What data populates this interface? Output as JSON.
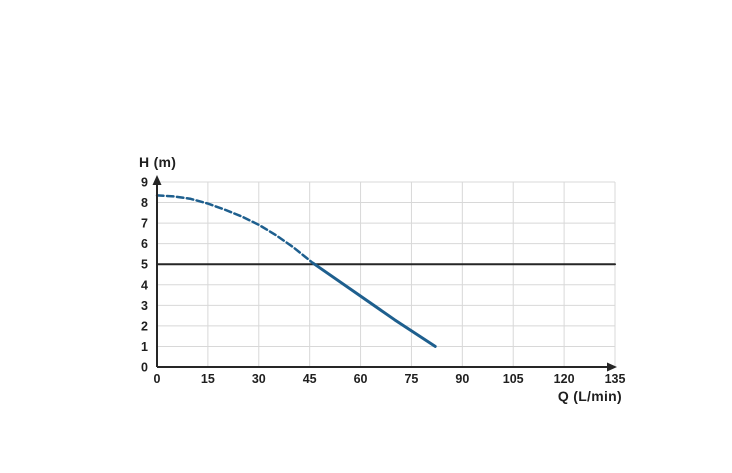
{
  "page": {
    "background": "#ffffff"
  },
  "chart_data": {
    "type": "line",
    "title": "",
    "xlabel": "Q (L/min)",
    "ylabel": "H (m)",
    "xlim": [
      0,
      135
    ],
    "ylim": [
      0,
      9
    ],
    "x_ticks": [
      0,
      15,
      30,
      45,
      60,
      75,
      90,
      105,
      120,
      135
    ],
    "y_ticks": [
      0,
      1,
      2,
      3,
      4,
      5,
      6,
      7,
      8,
      9
    ],
    "grid": true,
    "legend_position": "none",
    "colors": {
      "curve": "#1e5f8e",
      "axis": "#262626",
      "grid": "#d8d8d8",
      "reference_line": "#262626",
      "tick_text": "#1f1f1f"
    },
    "series": [
      {
        "name": "required-head-line",
        "style": "solid",
        "width": 2,
        "color": "#262626",
        "points": [
          [
            0,
            5
          ],
          [
            135,
            5
          ]
        ]
      },
      {
        "name": "pump-curve-dashed-segment",
        "style": "dashed",
        "width": 2.5,
        "color": "#1e5f8e",
        "points": [
          [
            0,
            8.35
          ],
          [
            5,
            8.3
          ],
          [
            10,
            8.18
          ],
          [
            15,
            7.95
          ],
          [
            20,
            7.65
          ],
          [
            25,
            7.32
          ],
          [
            30,
            6.92
          ],
          [
            35,
            6.42
          ],
          [
            40,
            5.85
          ],
          [
            43,
            5.45
          ],
          [
            46,
            5.05
          ]
        ]
      },
      {
        "name": "pump-curve-solid-segment",
        "style": "solid",
        "width": 3,
        "color": "#1e5f8e",
        "points": [
          [
            46,
            5.05
          ],
          [
            60,
            3.45
          ],
          [
            70,
            2.3
          ],
          [
            82,
            1.0
          ]
        ]
      }
    ]
  }
}
